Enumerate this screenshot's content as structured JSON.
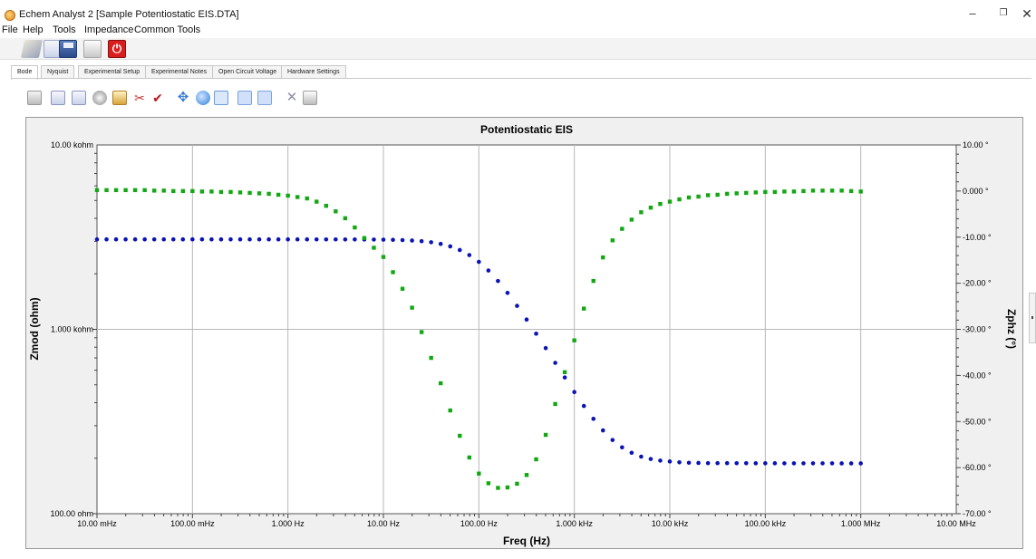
{
  "window": {
    "title": "Echem Analyst 2 [Sample Potentiostatic EIS.DTA]",
    "minimize_glyph": "–",
    "maximize_glyph": "❐",
    "close_glyph": "✕"
  },
  "menu": [
    "File",
    "Help",
    "Tools",
    "Impedance",
    "Common Tools"
  ],
  "toolbar": {
    "icons": [
      "open-file-icon",
      "chart-icon",
      "save-icon",
      "print-icon",
      "power-icon"
    ]
  },
  "tabs": [
    {
      "label": "Bode",
      "active": true
    },
    {
      "label": "Nyquist",
      "active": false
    },
    {
      "label": "Experimental Setup",
      "active": false
    },
    {
      "label": "Experimental Notes",
      "active": false
    },
    {
      "label": "Open Circuit Voltage",
      "active": false
    },
    {
      "label": "Hardware Settings",
      "active": false
    }
  ],
  "plot_toolbar": {
    "icons": [
      "copy-icon",
      "chart-add-icon",
      "chart-edit-icon",
      "pie-icon",
      "export-icon",
      "cut-icon",
      "check-icon",
      "pan-icon",
      "zoom-in-icon",
      "zoom-fit-icon",
      "chart-toggle-icon",
      "chart-toggle-2-icon",
      "delete-icon",
      "print-icon"
    ]
  },
  "chart_data": {
    "type": "scatter",
    "title": "Potentiostatic EIS",
    "xlabel": "Freq (Hz)",
    "ylabel": "Zmod (ohm)",
    "y2label": "Zphz (°)",
    "xscale": "log",
    "yscale": "log",
    "xlim": [
      0.01,
      10000000
    ],
    "ylim": [
      100,
      10000
    ],
    "y2lim": [
      -70,
      10
    ],
    "grid": true,
    "x_ticks": [
      {
        "value": 0.01,
        "label": "10.00 mHz"
      },
      {
        "value": 0.1,
        "label": "100.00 mHz"
      },
      {
        "value": 1,
        "label": "1.000 Hz"
      },
      {
        "value": 10,
        "label": "10.00 Hz"
      },
      {
        "value": 100,
        "label": "100.00 Hz"
      },
      {
        "value": 1000,
        "label": "1.000 kHz"
      },
      {
        "value": 10000,
        "label": "10.00 kHz"
      },
      {
        "value": 100000,
        "label": "100.00 kHz"
      },
      {
        "value": 1000000,
        "label": "1.000 MHz"
      },
      {
        "value": 10000000,
        "label": "10.00 MHz"
      }
    ],
    "y_ticks": [
      {
        "value": 10000,
        "label": "10.00 kohm"
      },
      {
        "value": 1000,
        "label": "1.000 kohm"
      },
      {
        "value": 100,
        "label": "100.00 ohm"
      }
    ],
    "y2_ticks": [
      {
        "value": 10,
        "label": "10.00 °"
      },
      {
        "value": 0,
        "label": "0.000 °"
      },
      {
        "value": -10,
        "label": "-10.00 °"
      },
      {
        "value": -20,
        "label": "-20.00 °"
      },
      {
        "value": -30,
        "label": "-30.00 °"
      },
      {
        "value": -40,
        "label": "-40.00 °"
      },
      {
        "value": -50,
        "label": "-50.00 °"
      },
      {
        "value": -60,
        "label": "-60.00 °"
      },
      {
        "value": -70,
        "label": "-70.00 °"
      }
    ],
    "series": [
      {
        "axis": "left",
        "color": "#0a14b4",
        "marker": "circle",
        "x": [
          0.01,
          0.01259,
          0.01585,
          0.01995,
          0.02512,
          0.03162,
          0.03981,
          0.05012,
          0.0631,
          0.07943,
          0.1,
          0.1259,
          0.1585,
          0.1995,
          0.2512,
          0.3162,
          0.3981,
          0.5012,
          0.631,
          0.7943,
          1,
          1.259,
          1.585,
          1.995,
          2.512,
          3.162,
          3.981,
          5.012,
          6.31,
          7.943,
          10,
          12.59,
          15.85,
          19.95,
          25.12,
          31.62,
          39.81,
          50.12,
          63.1,
          79.43,
          100,
          125.9,
          158.5,
          199.5,
          251.2,
          316.2,
          398.1,
          501.2,
          631,
          794.3,
          1000,
          1259,
          1585,
          1995,
          2512,
          3162,
          3981,
          5012,
          6310,
          7943,
          10000,
          12590,
          15850,
          19950,
          25120,
          31620,
          39810,
          50120,
          63100,
          79430,
          100000,
          125900,
          158500,
          199500,
          251200,
          316200,
          398100,
          501200,
          631000,
          794300,
          1000000
        ],
        "y": [
          3076,
          3076,
          3076,
          3076,
          3076,
          3076,
          3076,
          3076,
          3076,
          3076,
          3076,
          3076,
          3076,
          3076,
          3076,
          3075,
          3075,
          3075,
          3075,
          3075,
          3075,
          3075,
          3075,
          3074,
          3074,
          3074,
          3073,
          3072,
          3070,
          3068,
          3064,
          3058,
          3048,
          3032,
          3007,
          2967,
          2907,
          2818,
          2693,
          2528,
          2322,
          2084,
          1829,
          1576,
          1341,
          1130,
          947,
          791,
          658,
          548,
          457,
          384,
          327,
          283,
          251,
          229,
          214,
          204,
          198,
          194,
          192,
          190,
          189,
          188.5,
          188,
          188,
          188,
          187.8,
          187.8,
          187.7,
          187.7,
          187.7,
          187.6,
          187.6,
          187.6,
          187.6,
          187.6,
          187.6,
          187.5,
          187.5,
          187.5
        ]
      },
      {
        "axis": "right",
        "color": "#13a813",
        "marker": "square",
        "x": [
          0.01,
          0.01259,
          0.01585,
          0.01995,
          0.02512,
          0.03162,
          0.03981,
          0.05012,
          0.0631,
          0.07943,
          0.1,
          0.1259,
          0.1585,
          0.1995,
          0.2512,
          0.3162,
          0.3981,
          0.5012,
          0.631,
          0.7943,
          1,
          1.259,
          1.585,
          1.995,
          2.512,
          3.162,
          3.981,
          5.012,
          6.31,
          7.943,
          10,
          12.59,
          15.85,
          19.95,
          25.12,
          31.62,
          39.81,
          50.12,
          63.1,
          79.43,
          100,
          125.9,
          158.5,
          199.5,
          251.2,
          316.2,
          398.1,
          501.2,
          631,
          794.3,
          1000,
          1259,
          1585,
          1995,
          2512,
          3162,
          3981,
          5012,
          6310,
          7943,
          10000,
          12590,
          15850,
          19950,
          25120,
          31620,
          39810,
          50120,
          63100,
          79430,
          100000,
          125900,
          158500,
          199500,
          251200,
          316200,
          398100,
          501200,
          631000,
          794300,
          1000000
        ],
        "y": [
          0.2,
          0.2,
          0.2,
          0.2,
          0.2,
          0.2,
          0.1,
          0.1,
          0.0,
          0.0,
          0.0,
          -0.1,
          -0.1,
          -0.2,
          -0.2,
          -0.3,
          -0.4,
          -0.5,
          -0.6,
          -0.8,
          -1.0,
          -1.3,
          -1.6,
          -2.3,
          -3.2,
          -4.4,
          -5.9,
          -7.9,
          -10.2,
          -12.3,
          -14.3,
          -17.6,
          -21.2,
          -25.3,
          -30.6,
          -36.2,
          -41.7,
          -47.6,
          -53.1,
          -57.8,
          -61.3,
          -63.4,
          -64.4,
          -64.3,
          -63.5,
          -61.6,
          -58.2,
          -52.9,
          -46.2,
          -39.3,
          -32.4,
          -25.5,
          -19.5,
          -14.4,
          -10.7,
          -8.2,
          -6.2,
          -4.6,
          -3.6,
          -2.8,
          -2.3,
          -1.8,
          -1.4,
          -1.2,
          -0.9,
          -0.8,
          -0.6,
          -0.5,
          -0.4,
          -0.3,
          -0.2,
          -0.2,
          -0.1,
          -0.1,
          0.0,
          0.1,
          0.1,
          0.1,
          0.1,
          0.0,
          -0.1
        ]
      }
    ]
  }
}
